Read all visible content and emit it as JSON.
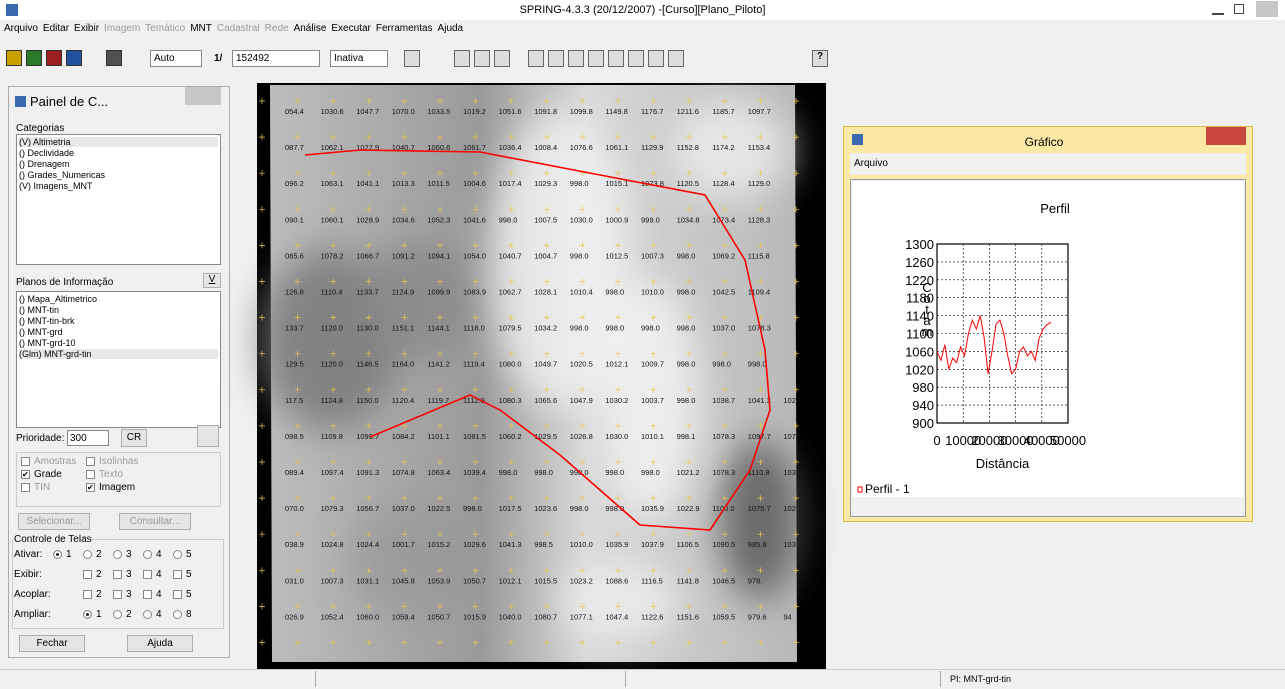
{
  "window_title": "SPRING-4.3.3 (20/12/2007) -[Curso][Plano_Piloto]",
  "menu": [
    {
      "label": "Arquivo",
      "enabled": true
    },
    {
      "label": "Editar",
      "enabled": true
    },
    {
      "label": "Exibir",
      "enabled": true
    },
    {
      "label": "Imagem",
      "enabled": false
    },
    {
      "label": "Temático",
      "enabled": false
    },
    {
      "label": "MNT",
      "enabled": true
    },
    {
      "label": "Cadastral",
      "enabled": false
    },
    {
      "label": "Rede",
      "enabled": false
    },
    {
      "label": "Análise",
      "enabled": true
    },
    {
      "label": "Executar",
      "enabled": true
    },
    {
      "label": "Ferramentas",
      "enabled": true
    },
    {
      "label": "Ajuda",
      "enabled": true
    }
  ],
  "toolbar": {
    "mode": "Auto",
    "scale_prefix": "1/",
    "scale": "152492",
    "state": "Inativa",
    "help": "?"
  },
  "panel": {
    "title": "Painel de C...",
    "categories_label": "Categorias",
    "categories": [
      "(V) Altimetria",
      "() Declividade",
      "() Drenagem",
      "() Grades_Numericas",
      "(V) Imagens_MNT"
    ],
    "planes_label": "Planos de Informação",
    "planes_button": "V",
    "planes": [
      "() Mapa_Altimetrico",
      "() MNT-tin",
      "() MNT-tin-brk",
      "() MNT-grd",
      "() MNT-grd-10",
      "(Glm) MNT-grd-tin"
    ],
    "priority_label": "Prioridade:",
    "priority": "300",
    "cr": "CR",
    "checks": [
      {
        "label": "Amostras",
        "checked": false,
        "enabled": false
      },
      {
        "label": "Isolinhas",
        "checked": false,
        "enabled": false
      },
      {
        "label": "Grade",
        "checked": true,
        "enabled": true
      },
      {
        "label": "Texto",
        "checked": false,
        "enabled": false
      },
      {
        "label": "TIN",
        "checked": false,
        "enabled": false
      },
      {
        "label": "Imagem",
        "checked": true,
        "enabled": true
      }
    ],
    "select_button": "Selecionar...",
    "query_button": "Consultar...",
    "screens_label": "Controle de Telas",
    "screen_rows": [
      {
        "label": "Ativar:",
        "kind": "radio",
        "options": [
          {
            "label": "1",
            "checked": true
          },
          {
            "label": "2",
            "checked": false
          },
          {
            "label": "3",
            "checked": false
          },
          {
            "label": "4",
            "checked": false
          },
          {
            "label": "5",
            "checked": false
          }
        ]
      },
      {
        "label": "Exibir:",
        "kind": "check",
        "options": [
          {
            "label": "2",
            "checked": false
          },
          {
            "label": "3",
            "checked": false
          },
          {
            "label": "4",
            "checked": false
          },
          {
            "label": "5",
            "checked": false
          }
        ]
      },
      {
        "label": "Acoplar:",
        "kind": "check",
        "options": [
          {
            "label": "2",
            "checked": false
          },
          {
            "label": "3",
            "checked": false
          },
          {
            "label": "4",
            "checked": false
          },
          {
            "label": "5",
            "checked": false
          }
        ]
      },
      {
        "label": "Ampliar:",
        "kind": "radio",
        "options": [
          {
            "label": "1",
            "checked": true
          },
          {
            "label": "2",
            "checked": false
          },
          {
            "label": "4",
            "checked": false
          },
          {
            "label": "8",
            "checked": false
          }
        ]
      }
    ],
    "close_button": "Fechar",
    "help_button": "Ajuda"
  },
  "map_grid": [
    [
      "054.4",
      "1030.6",
      "1047.7",
      "1070.0",
      "1033.5",
      "1019.2",
      "1051.6",
      "1091.8",
      "1099.8",
      "1149.8",
      "1176.7",
      "1211.6",
      "1185.7",
      "1097.7"
    ],
    [
      "087.7",
      "1062.1",
      "1027.9",
      "1040.7",
      "1060.6",
      "1061.7",
      "1036.4",
      "1008.4",
      "1076.6",
      "1061.1",
      "1129.9",
      "1152.8",
      "1174.2",
      "1153.4"
    ],
    [
      "096.2",
      "1063.1",
      "1041.1",
      "1013.3",
      "1011.5",
      "1004.6",
      "1017.4",
      "1029.3",
      "998.0",
      "1015.1",
      "1073.8",
      "1120.5",
      "1128.4",
      "1129.0"
    ],
    [
      "090.1",
      "1060.1",
      "1028.9",
      "1034.6",
      "1052.3",
      "1041.6",
      "998.0",
      "1007.5",
      "1030.0",
      "1000.9",
      "999.0",
      "1034.8",
      "1073.4",
      "1128.3"
    ],
    [
      "085.6",
      "1078.2",
      "1066.7",
      "1091.2",
      "1094.1",
      "1054.0",
      "1040.7",
      "1004.7",
      "998.0",
      "1012.5",
      "1007.3",
      "998.0",
      "1069.2",
      "1115.8"
    ],
    [
      "126.8",
      "1110.4",
      "1133.7",
      "1124.9",
      "1099.9",
      "1083.9",
      "1062.7",
      "1028.1",
      "1010.4",
      "998.0",
      "1010.0",
      "998.0",
      "1042.5",
      "1109.4"
    ],
    [
      "133.7",
      "1120.0",
      "1130.0",
      "1151.1",
      "1144.1",
      "1118.0",
      "1079.5",
      "1034.2",
      "998.0",
      "998.0",
      "998.0",
      "998.0",
      "1037.0",
      "1078.3"
    ],
    [
      "129.5",
      "1120.0",
      "1146.5",
      "1164.0",
      "1141.2",
      "1119.4",
      "1080.0",
      "1049.7",
      "1020.5",
      "1012.1",
      "1009.7",
      "998.0",
      "998.0",
      "998.0"
    ],
    [
      "117.5",
      "1124.8",
      "1150.0",
      "1120.4",
      "1119.7",
      "1112.9",
      "1080.3",
      "1065.6",
      "1047.9",
      "1030.2",
      "1003.7",
      "998.0",
      "1038.7",
      "1041.3",
      "102"
    ],
    [
      "098.5",
      "1109.8",
      "1099.7",
      "1084.2",
      "1101.1",
      "1081.5",
      "1060.2",
      "1029.5",
      "1026.8",
      "1030.0",
      "1010.1",
      "998.1",
      "1078.3",
      "1097.7",
      "107"
    ],
    [
      "089.4",
      "1097.4",
      "1091.3",
      "1074.8",
      "1063.4",
      "1039.4",
      "998.0",
      "998.0",
      "998.0",
      "998.0",
      "998.0",
      "1021.2",
      "1078.3",
      "1110.8",
      "103"
    ],
    [
      "070.0",
      "1079.3",
      "1056.7",
      "1037.0",
      "1022.5",
      "998.0",
      "1017.5",
      "1023.6",
      "998.0",
      "998.0",
      "1035.9",
      "1022.9",
      "1100.0",
      "1075.7",
      "102"
    ],
    [
      "038.9",
      "1024.8",
      "1024.4",
      "1001.7",
      "1015.2",
      "1029.6",
      "1041.3",
      "998.5",
      "1010.0",
      "1035.9",
      "1037.9",
      "1106.5",
      "1090.5",
      "985.8",
      "103"
    ],
    [
      "031.0",
      "1007.3",
      "1031.1",
      "1045.8",
      "1053.9",
      "1050.7",
      "1012.1",
      "1015.5",
      "1023.2",
      "1088.6",
      "1116.5",
      "1141.8",
      "1046.5",
      "978."
    ],
    [
      "026.9",
      "1052.4",
      "1060.0",
      "1059.4",
      "1050.7",
      "1015.9",
      "1040.0",
      "1080.7",
      "1077.1",
      "1047.4",
      "1122.6",
      "1151.6",
      "1059.5",
      "979.6",
      "94"
    ]
  ],
  "graph_window": {
    "title": "Gráfico",
    "menu": "Arquivo"
  },
  "chart_data": {
    "type": "line",
    "title": "Perfil",
    "xlabel": "Distância",
    "ylabel": "Cotam",
    "x": [
      0,
      1500,
      3000,
      4500,
      6000,
      7500,
      9000,
      10500,
      12000,
      13500,
      15000,
      16500,
      18000,
      19500,
      21000,
      22500,
      24000,
      25500,
      27000,
      28500,
      30000,
      31500,
      33000,
      34500,
      36000,
      37500,
      39000,
      40500,
      42000,
      43500
    ],
    "series": [
      {
        "name": "Perfil - 1",
        "color": "#ff0000",
        "values": [
          1060,
          1040,
          1075,
          1020,
          1045,
          1035,
          1070,
          1050,
          1100,
          1130,
          1110,
          1140,
          1090,
          1010,
          1060,
          1120,
          1130,
          1100,
          1050,
          1010,
          1020,
          1060,
          1070,
          1050,
          1060,
          1040,
          1090,
          1110,
          1120,
          1125
        ]
      }
    ],
    "xlim": [
      0,
      50000
    ],
    "ylim": [
      900,
      1300
    ],
    "xticks": [
      0,
      10000,
      20000,
      30000,
      40000,
      50000
    ],
    "yticks": [
      900,
      940,
      980,
      1020,
      1060,
      1100,
      1140,
      1180,
      1220,
      1260,
      1300
    ],
    "grid": true
  },
  "status": "PI: MNT-grd-tin"
}
